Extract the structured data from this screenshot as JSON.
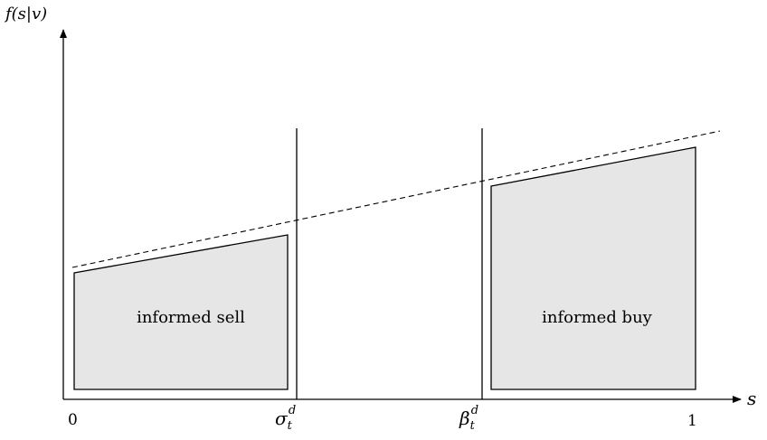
{
  "y_axis_label": "f(s|v)",
  "x_axis_label": "s",
  "ticks": {
    "zero": "0",
    "one": "1",
    "sigma_base": "σ",
    "sigma_sub": "t",
    "sigma_sup": "d",
    "beta_base": "β",
    "beta_sub": "t",
    "beta_sup": "d"
  },
  "regions": {
    "sell_label": "informed sell",
    "buy_label": "informed buy"
  },
  "colors": {
    "region_fill": "#e6e6e6",
    "line": "#000000"
  }
}
